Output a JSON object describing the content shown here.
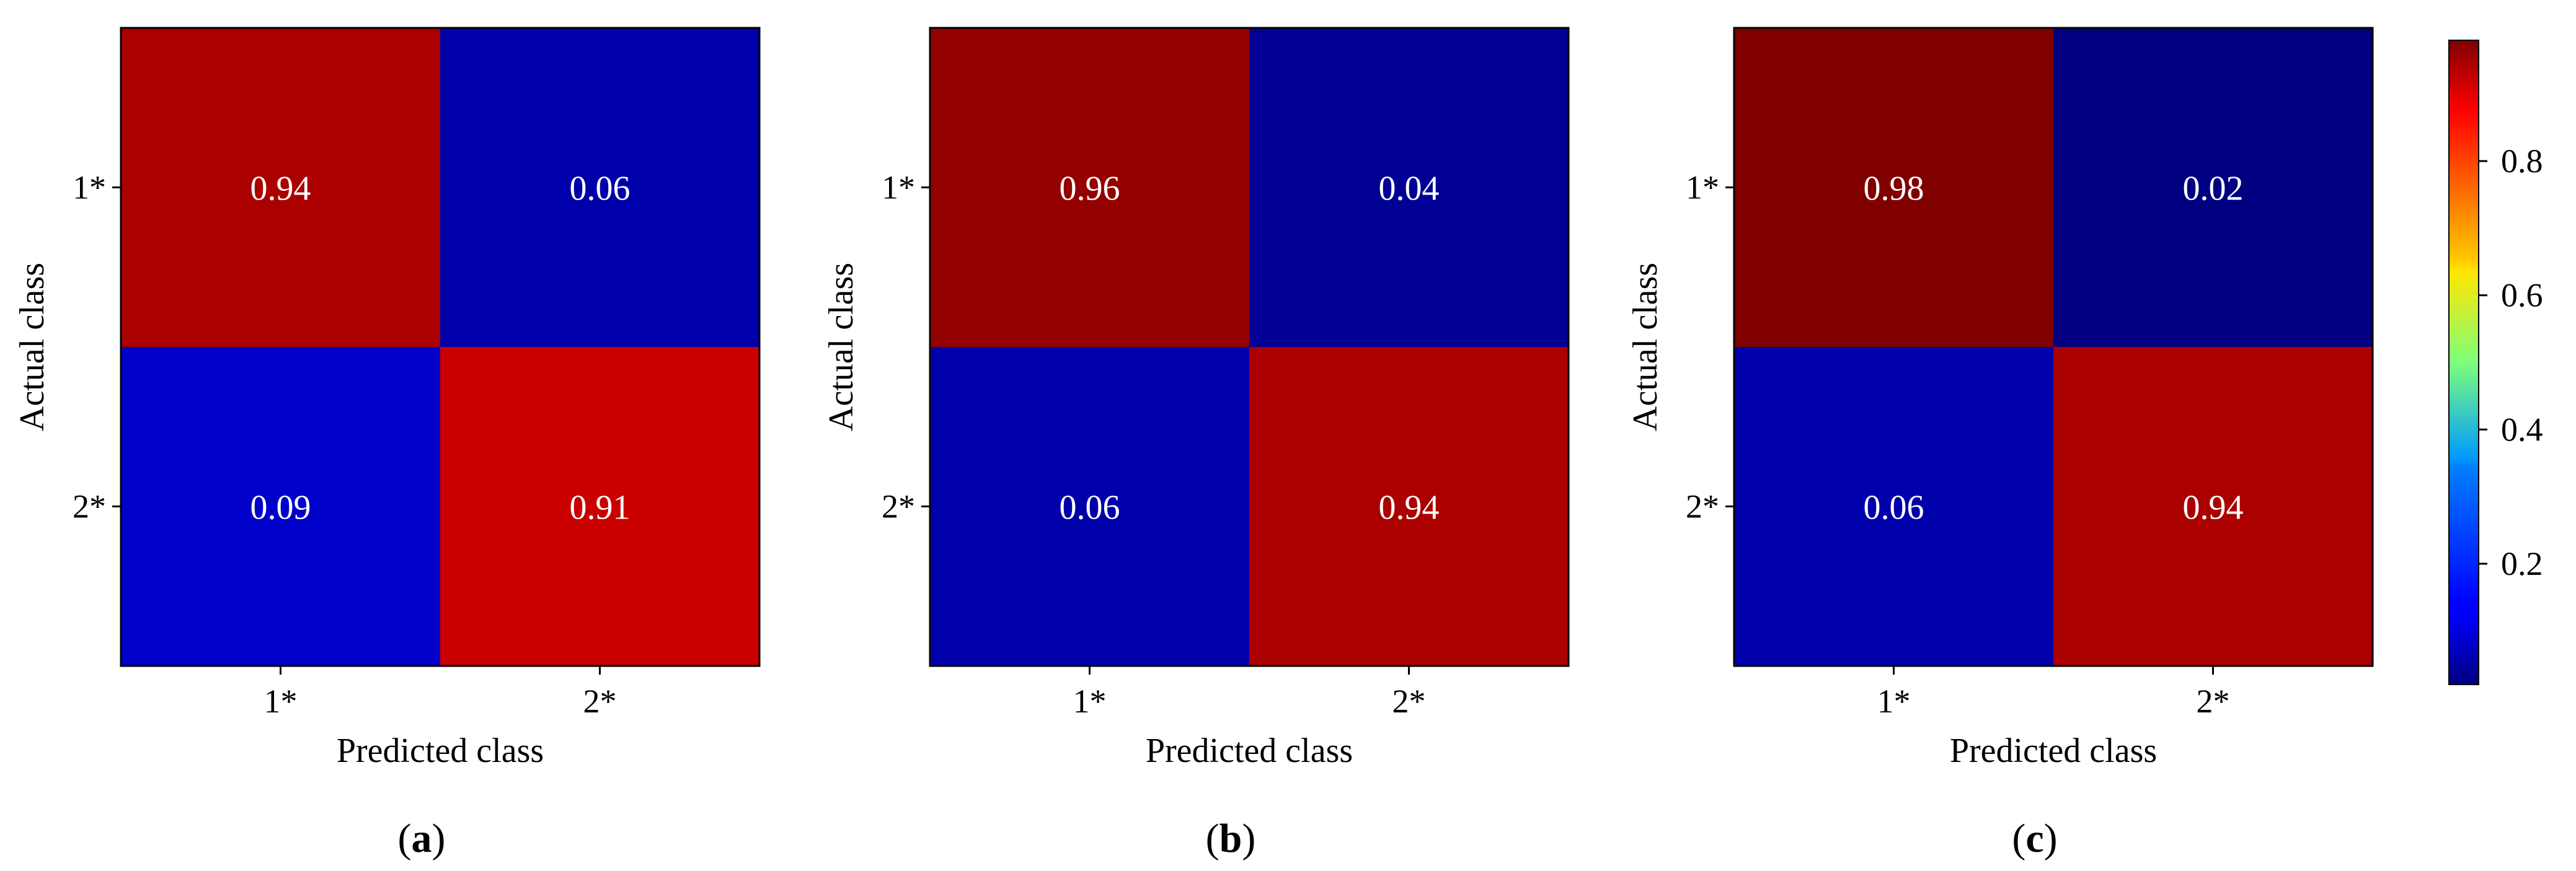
{
  "figure": {
    "panel_labels": [
      "(a)",
      "(b)",
      "(c)"
    ]
  },
  "chart_data": [
    {
      "type": "heatmap",
      "panel": "(a)",
      "xlabel": "Predicted class",
      "ylabel": "Actual class",
      "x_categories": [
        "1*",
        "2*"
      ],
      "y_categories": [
        "1*",
        "2*"
      ],
      "values": [
        [
          0.94,
          0.06
        ],
        [
          0.09,
          0.91
        ]
      ]
    },
    {
      "type": "heatmap",
      "panel": "(b)",
      "xlabel": "Predicted class",
      "ylabel": "Actual class",
      "x_categories": [
        "1*",
        "2*"
      ],
      "y_categories": [
        "1*",
        "2*"
      ],
      "values": [
        [
          0.96,
          0.04
        ],
        [
          0.06,
          0.94
        ]
      ]
    },
    {
      "type": "heatmap",
      "panel": "(c)",
      "xlabel": "Predicted class",
      "ylabel": "Actual class",
      "x_categories": [
        "1*",
        "2*"
      ],
      "y_categories": [
        "1*",
        "2*"
      ],
      "values": [
        [
          0.98,
          0.02
        ],
        [
          0.06,
          0.94
        ]
      ]
    }
  ],
  "colorbar": {
    "colormap": "jet",
    "range": [
      0.02,
      0.98
    ],
    "ticks": [
      "0.2",
      "0.4",
      "0.6",
      "0.8"
    ]
  },
  "colors": {
    "cell_text": "#ffffff",
    "axis_text": "#000000"
  }
}
